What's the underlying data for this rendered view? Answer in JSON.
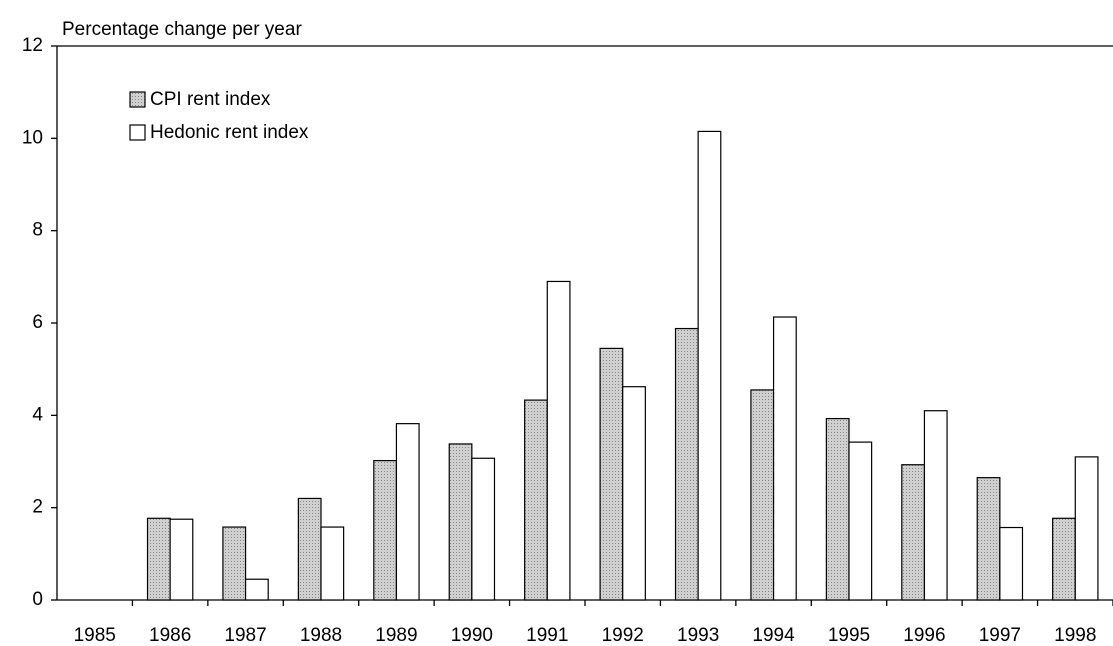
{
  "chart_data": {
    "type": "bar",
    "y_label": "Percentage change per year",
    "categories": [
      "1985",
      "1986",
      "1987",
      "1988",
      "1989",
      "1990",
      "1991",
      "1992",
      "1993",
      "1994",
      "1995",
      "1996",
      "1997",
      "1998"
    ],
    "series": [
      {
        "name": "CPI rent index",
        "color": "#c0c0c0",
        "values": [
          null,
          1.77,
          1.58,
          2.2,
          3.02,
          3.38,
          4.33,
          5.45,
          5.88,
          4.55,
          3.93,
          2.93,
          2.65,
          1.77
        ]
      },
      {
        "name": "Hedonic rent index",
        "color": "#ffffff",
        "values": [
          null,
          1.75,
          0.45,
          1.58,
          3.82,
          3.07,
          6.9,
          4.62,
          10.15,
          6.13,
          3.42,
          4.1,
          1.57,
          3.1
        ]
      }
    ],
    "ylim": [
      0,
      12
    ],
    "yticks": [
      0,
      2,
      4,
      6,
      8,
      10,
      12
    ],
    "legend": "top-left"
  }
}
